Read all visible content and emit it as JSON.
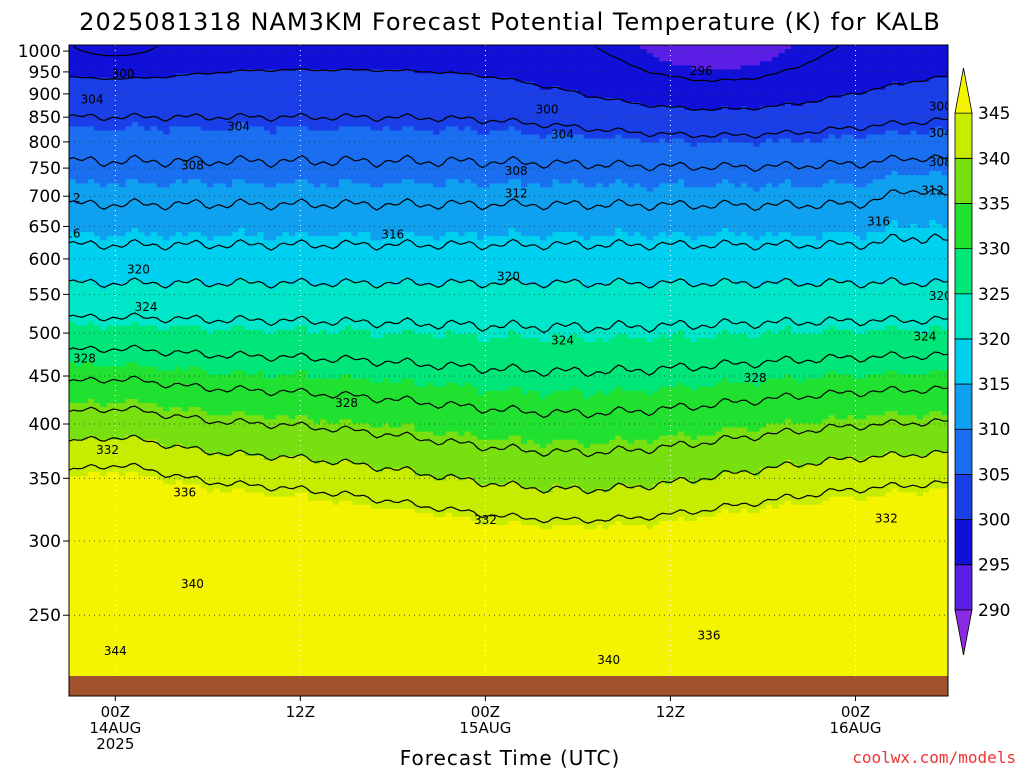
{
  "chart_data": {
    "type": "heatmap",
    "title": "2025081318 NAM3KM Forecast Potential Temperature (K) for KALB",
    "xlabel": "Forecast Time (UTC)",
    "ylabel": "",
    "credit": "coolwx.com/models",
    "y_scale": "log",
    "ylim": [
      1015,
      205
    ],
    "y_ticks": [
      "250",
      "300",
      "350",
      "400",
      "450",
      "500",
      "550",
      "600",
      "650",
      "700",
      "750",
      "800",
      "850",
      "900",
      "950",
      "1000"
    ],
    "y_tick_values": [
      250,
      300,
      350,
      400,
      450,
      500,
      550,
      600,
      650,
      700,
      750,
      800,
      850,
      900,
      950,
      1000
    ],
    "xlim": [
      "2025-08-13 18Z",
      "2025-08-16 12Z"
    ],
    "x_ticks": [
      {
        "time": "2025-08-14 00Z",
        "line1": "00Z",
        "line2": "14AUG",
        "line3": "2025"
      },
      {
        "time": "2025-08-14 12Z",
        "line1": "12Z",
        "line2": "",
        "line3": ""
      },
      {
        "time": "2025-08-15 00Z",
        "line1": "00Z",
        "line2": "15AUG",
        "line3": ""
      },
      {
        "time": "2025-08-15 12Z",
        "line1": "12Z",
        "line2": "",
        "line3": ""
      },
      {
        "time": "2025-08-16 00Z",
        "line1": "00Z",
        "line2": "16AUG",
        "line3": ""
      }
    ],
    "grid": true,
    "colorbar": {
      "labels": [
        "290",
        "295",
        "300",
        "305",
        "310",
        "315",
        "320",
        "325",
        "330",
        "335",
        "340",
        "345"
      ],
      "colors": [
        "#8a2be2",
        "#5a1ee6",
        "#1010d8",
        "#1a3ee8",
        "#1a6ef0",
        "#10a0f0",
        "#00d0f0",
        "#00e6c8",
        "#00e678",
        "#20e030",
        "#78e010",
        "#c8ec00",
        "#f4f400"
      ]
    },
    "contour_levels": [
      292,
      296,
      300,
      304,
      308,
      312,
      316,
      320,
      324,
      328,
      332,
      336,
      340,
      344
    ],
    "contour_labels": [
      {
        "text": "344",
        "time": 6,
        "p": 229
      },
      {
        "text": "344",
        "time": 62,
        "p": 212
      },
      {
        "text": "340",
        "time": 16,
        "p": 270
      },
      {
        "text": "340",
        "time": 70,
        "p": 224
      },
      {
        "text": "336",
        "time": 15,
        "p": 338
      },
      {
        "text": "336",
        "time": 83,
        "p": 238
      },
      {
        "text": "332",
        "time": 5,
        "p": 375
      },
      {
        "text": "332",
        "time": 54,
        "p": 316
      },
      {
        "text": "332",
        "time": 106,
        "p": 317
      },
      {
        "text": "328",
        "time": 36,
        "p": 421
      },
      {
        "text": "328",
        "time": 2,
        "p": 470
      },
      {
        "text": "328",
        "time": 89,
        "p": 448
      },
      {
        "text": "324",
        "time": 10,
        "p": 533
      },
      {
        "text": "324",
        "time": 64,
        "p": 491
      },
      {
        "text": "324",
        "time": 111,
        "p": 496
      },
      {
        "text": "320",
        "time": 9,
        "p": 585
      },
      {
        "text": "320",
        "time": 57,
        "p": 575
      },
      {
        "text": "320",
        "time": 113,
        "p": 548
      },
      {
        "text": "316",
        "time": 0,
        "p": 639
      },
      {
        "text": "316",
        "time": 42,
        "p": 637
      },
      {
        "text": "316",
        "time": 105,
        "p": 658
      },
      {
        "text": "312",
        "time": 0,
        "p": 697
      },
      {
        "text": "312",
        "time": 58,
        "p": 705
      },
      {
        "text": "312",
        "time": 112,
        "p": 710
      },
      {
        "text": "308",
        "time": 16,
        "p": 755
      },
      {
        "text": "308",
        "time": 58,
        "p": 745
      },
      {
        "text": "308",
        "time": 113,
        "p": 761
      },
      {
        "text": "304",
        "time": 22,
        "p": 831
      },
      {
        "text": "304",
        "time": 64,
        "p": 815
      },
      {
        "text": "304",
        "time": 113,
        "p": 818
      },
      {
        "text": "304",
        "time": 3,
        "p": 888
      },
      {
        "text": "300",
        "time": 7,
        "p": 945
      },
      {
        "text": "300",
        "time": 62,
        "p": 866
      },
      {
        "text": "300",
        "time": 113,
        "p": 873
      },
      {
        "text": "296",
        "time": 82,
        "p": 952
      }
    ]
  }
}
